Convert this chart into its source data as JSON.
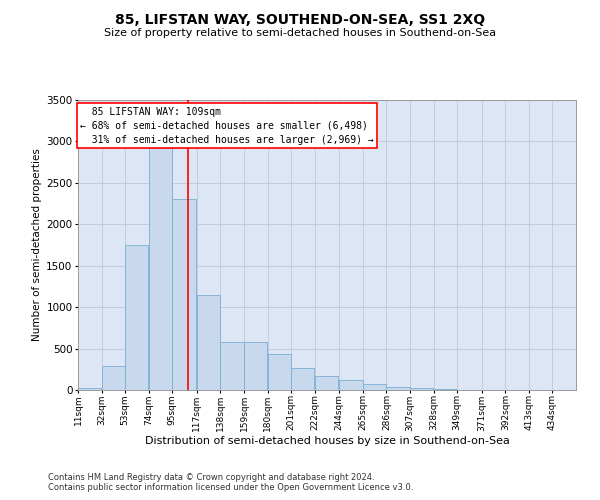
{
  "title": "85, LIFSTAN WAY, SOUTHEND-ON-SEA, SS1 2XQ",
  "subtitle": "Size of property relative to semi-detached houses in Southend-on-Sea",
  "xlabel": "Distribution of semi-detached houses by size in Southend-on-Sea",
  "ylabel": "Number of semi-detached properties",
  "footnote1": "Contains HM Land Registry data © Crown copyright and database right 2024.",
  "footnote2": "Contains public sector information licensed under the Open Government Licence v3.0.",
  "bar_color": "#c8d9ee",
  "bar_edge_color": "#7aafd4",
  "grid_color": "#c0c8d8",
  "background_color": "#dce6f5",
  "property_line_x": 109,
  "pct_smaller": 68,
  "count_smaller": 6498,
  "pct_larger": 31,
  "count_larger": 2969,
  "annotation_label": "85 LIFSTAN WAY: 109sqm",
  "categories": [
    "11sqm",
    "32sqm",
    "53sqm",
    "74sqm",
    "95sqm",
    "117sqm",
    "138sqm",
    "159sqm",
    "180sqm",
    "201sqm",
    "222sqm",
    "244sqm",
    "265sqm",
    "286sqm",
    "307sqm",
    "328sqm",
    "349sqm",
    "371sqm",
    "392sqm",
    "413sqm",
    "434sqm"
  ],
  "bin_edges": [
    11,
    32,
    53,
    74,
    95,
    117,
    138,
    159,
    180,
    201,
    222,
    244,
    265,
    286,
    307,
    328,
    349,
    371,
    392,
    413,
    434
  ],
  "values": [
    25,
    290,
    1750,
    3050,
    2300,
    1150,
    580,
    580,
    430,
    265,
    175,
    120,
    70,
    40,
    20,
    8,
    4,
    2,
    1,
    0,
    0
  ],
  "ylim": [
    0,
    3500
  ],
  "yticks": [
    0,
    500,
    1000,
    1500,
    2000,
    2500,
    3000,
    3500
  ]
}
